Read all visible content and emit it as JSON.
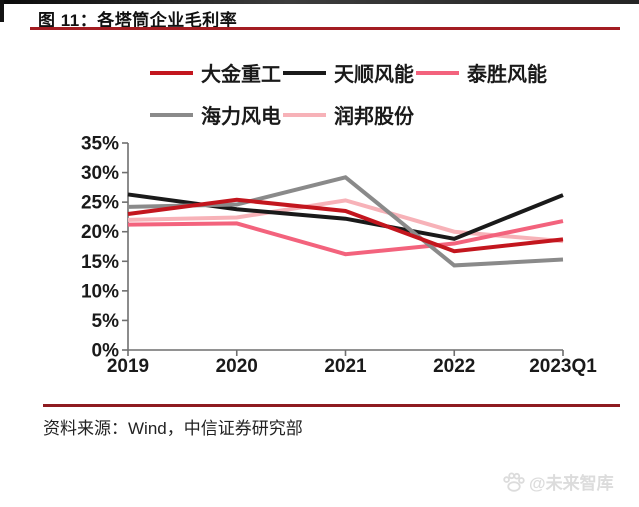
{
  "figure": {
    "title": "图 11：各塔筒企业毛利率",
    "source": "资料来源：Wind，中信证券研究部",
    "watermark": "@未来智库"
  },
  "chart_data": {
    "type": "line",
    "title": "各塔筒企业毛利率",
    "categories": [
      "2019",
      "2020",
      "2021",
      "2022",
      "2023Q1"
    ],
    "series": [
      {
        "name": "大金重工",
        "color": "#C3161E",
        "values": [
          23.0,
          25.4,
          23.5,
          16.7,
          18.7
        ]
      },
      {
        "name": "天顺风能",
        "color": "#1A1A1A",
        "values": [
          26.3,
          23.8,
          22.2,
          18.8,
          26.2
        ]
      },
      {
        "name": "泰胜风能",
        "color": "#F3637D",
        "values": [
          21.2,
          21.4,
          16.2,
          18.0,
          21.8
        ]
      },
      {
        "name": "海力风电",
        "color": "#8A8A8A",
        "values": [
          24.2,
          24.6,
          29.2,
          14.3,
          15.3
        ]
      },
      {
        "name": "润邦股份",
        "color": "#F7B2B8",
        "values": [
          22.0,
          22.4,
          25.3,
          20.0,
          18.4
        ]
      }
    ],
    "xlabel": "",
    "ylabel": "",
    "ylim": [
      0,
      35
    ],
    "ytick_step": 5,
    "ytick_labels": [
      "0%",
      "5%",
      "10%",
      "15%",
      "20%",
      "25%",
      "30%",
      "35%"
    ],
    "grid": false,
    "legend_position": "top",
    "axis_color": "#6F6F6F"
  }
}
